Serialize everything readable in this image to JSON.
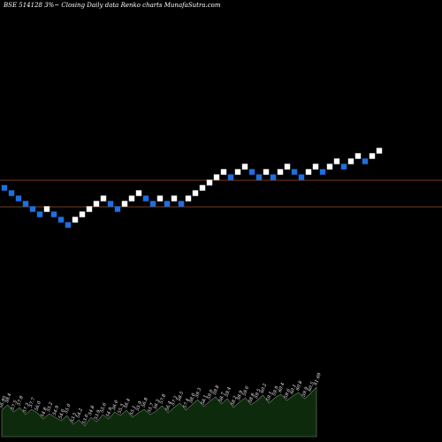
{
  "header": {
    "title": "BSE 514128  3%~  Closing Daily data  Renko  charts MunafaSutra.com"
  },
  "colors": {
    "background": "#000000",
    "up_brick": "#ffffff",
    "down_brick": "#1f6fe0",
    "reference_line": "#a0522d",
    "volume_fill": "#0d2a0d",
    "volume_stroke": "#6a8a6a"
  },
  "chart_data": {
    "type": "renko",
    "title": "BSE 514128  3%~  Closing Daily data  Renko  charts MunafaSutra.com",
    "reference_levels": [
      "upper",
      "lower"
    ],
    "bricks": [
      {
        "dir": "down",
        "level": 20
      },
      {
        "dir": "down",
        "level": 19
      },
      {
        "dir": "down",
        "level": 18
      },
      {
        "dir": "down",
        "level": 17
      },
      {
        "dir": "down",
        "level": 16
      },
      {
        "dir": "down",
        "level": 15
      },
      {
        "dir": "up",
        "level": 16
      },
      {
        "dir": "down",
        "level": 15
      },
      {
        "dir": "down",
        "level": 14
      },
      {
        "dir": "down",
        "level": 13
      },
      {
        "dir": "up",
        "level": 14
      },
      {
        "dir": "up",
        "level": 15
      },
      {
        "dir": "up",
        "level": 16
      },
      {
        "dir": "up",
        "level": 17
      },
      {
        "dir": "up",
        "level": 18
      },
      {
        "dir": "down",
        "level": 17
      },
      {
        "dir": "down",
        "level": 16
      },
      {
        "dir": "up",
        "level": 17
      },
      {
        "dir": "up",
        "level": 18
      },
      {
        "dir": "up",
        "level": 19
      },
      {
        "dir": "down",
        "level": 18
      },
      {
        "dir": "down",
        "level": 17
      },
      {
        "dir": "up",
        "level": 18
      },
      {
        "dir": "down",
        "level": 17
      },
      {
        "dir": "up",
        "level": 18
      },
      {
        "dir": "down",
        "level": 17
      },
      {
        "dir": "up",
        "level": 18
      },
      {
        "dir": "up",
        "level": 19
      },
      {
        "dir": "up",
        "level": 20
      },
      {
        "dir": "up",
        "level": 21
      },
      {
        "dir": "up",
        "level": 22
      },
      {
        "dir": "up",
        "level": 23
      },
      {
        "dir": "down",
        "level": 22
      },
      {
        "dir": "up",
        "level": 23
      },
      {
        "dir": "up",
        "level": 24
      },
      {
        "dir": "down",
        "level": 23
      },
      {
        "dir": "down",
        "level": 22
      },
      {
        "dir": "up",
        "level": 23
      },
      {
        "dir": "down",
        "level": 22
      },
      {
        "dir": "up",
        "level": 23
      },
      {
        "dir": "up",
        "level": 24
      },
      {
        "dir": "down",
        "level": 23
      },
      {
        "dir": "down",
        "level": 22
      },
      {
        "dir": "up",
        "level": 23
      },
      {
        "dir": "up",
        "level": 24
      },
      {
        "dir": "down",
        "level": 23
      },
      {
        "dir": "up",
        "level": 24
      },
      {
        "dir": "up",
        "level": 25
      },
      {
        "dir": "down",
        "level": 24
      },
      {
        "dir": "up",
        "level": 25
      },
      {
        "dir": "up",
        "level": 26
      },
      {
        "dir": "down",
        "level": 25
      },
      {
        "dir": "up",
        "level": 26
      },
      {
        "dir": "up",
        "level": 27
      }
    ],
    "volume": {
      "values": [
        30,
        36,
        28,
        33,
        25,
        31,
        27,
        20,
        26,
        22,
        18,
        24,
        14,
        19,
        12,
        22,
        17,
        25,
        20,
        28,
        24,
        30,
        22,
        27,
        31,
        25,
        29,
        35,
        27,
        33,
        38,
        30,
        36,
        42,
        34,
        40,
        45,
        37,
        43,
        33,
        39,
        44,
        36,
        41,
        47,
        38,
        44,
        48,
        41,
        46,
        50,
        43,
        49,
        56
      ],
      "labels": [
        "56.95",
        "58.4",
        "57.5",
        "57.8",
        "57.3",
        "57.7",
        "56.0",
        "54.8",
        "55.2",
        "54.9",
        "54.6",
        "55.0",
        "53.5",
        "54.2",
        "53.0",
        "54.8",
        "53.9",
        "55.6",
        "54.9",
        "56.0",
        "55.3",
        "56.4",
        "55.1",
        "55.9",
        "56.8",
        "55.7",
        "56.3",
        "57.8",
        "56.4",
        "57.2",
        "58.5",
        "57.4",
        "58.0",
        "59.3",
        "58.1",
        "59.0",
        "59.8",
        "58.7",
        "59.4",
        "58.2",
        "58.9",
        "59.6",
        "58.8",
        "59.5",
        "60.2",
        "59.1",
        "59.9",
        "60.4",
        "59.6",
        "60.1",
        "60.8",
        "59.9",
        "60.5",
        "61.69"
      ]
    }
  }
}
